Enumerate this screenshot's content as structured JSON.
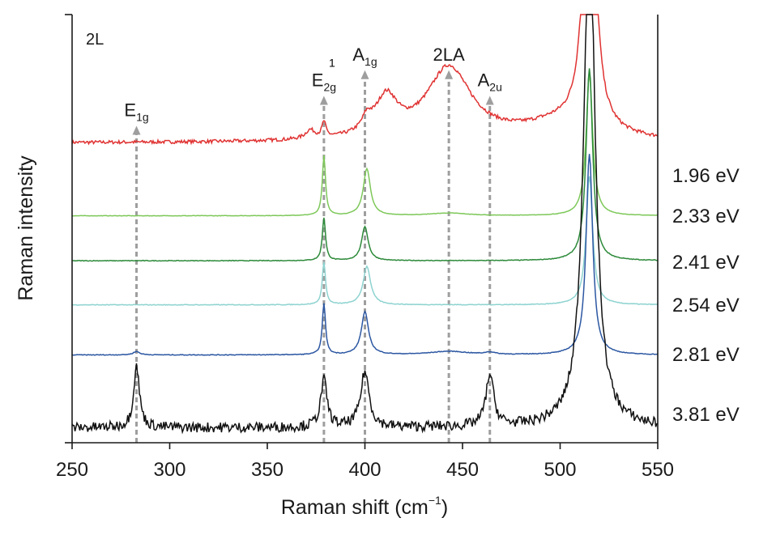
{
  "chart_data": {
    "type": "line",
    "title": "",
    "panel_label": "2L",
    "xlabel": "Raman shift (cm",
    "xlabel_sup": "−1",
    "xlabel_end": ")",
    "ylabel": "Raman intensity",
    "xlim": [
      250,
      550
    ],
    "xticks": [
      "250",
      "300",
      "350",
      "400",
      "450",
      "500",
      "550"
    ],
    "grid": false,
    "peak_markers": [
      {
        "name": "E1g",
        "base": "E",
        "sub": "1g",
        "sup": "",
        "x": 283,
        "top": 0.74
      },
      {
        "name": "E2g1",
        "base": "E",
        "sub": "2g",
        "sup": "1",
        "x": 379,
        "top": 0.81
      },
      {
        "name": "A1g",
        "base": "A",
        "sub": "1g",
        "sup": "",
        "x": 400,
        "top": 0.87
      },
      {
        "name": "2LA",
        "base": "2LA",
        "sub": "",
        "sup": "",
        "x": 443,
        "top": 0.87
      },
      {
        "name": "A2u",
        "base": "A",
        "sub": "2u",
        "sup": "",
        "x": 464,
        "top": 0.81
      }
    ],
    "series": [
      {
        "name": "1.96 eV",
        "color": "#e03232",
        "baseline": 0.7,
        "noise": 0.004,
        "slope": 0.04,
        "peaks": [
          [
            372,
            0.02,
            3
          ],
          [
            379,
            0.035,
            1.2
          ],
          [
            401,
            0.03,
            3
          ],
          [
            411,
            0.09,
            7
          ],
          [
            443,
            0.17,
            14
          ],
          [
            500,
            0.04,
            25
          ],
          [
            515,
            0.9,
            3
          ]
        ]
      },
      {
        "name": "2.33 eV",
        "color": "#7ec85a",
        "baseline": 0.53,
        "noise": 0.0005,
        "slope": 0,
        "peaks": [
          [
            379,
            0.14,
            1.0
          ],
          [
            401,
            0.11,
            2.2
          ],
          [
            443,
            0.006,
            12
          ],
          [
            515,
            0.33,
            2.0
          ]
        ]
      },
      {
        "name": "2.41 eV",
        "color": "#2d8a3a",
        "baseline": 0.425,
        "noise": 0.0008,
        "slope": 0,
        "peaks": [
          [
            379,
            0.1,
            1.0
          ],
          [
            400,
            0.08,
            2.0
          ],
          [
            515,
            0.45,
            2.0
          ]
        ]
      },
      {
        "name": "2.54 eV",
        "color": "#8ed3d0",
        "baseline": 0.322,
        "noise": 0.0008,
        "slope": 0,
        "peaks": [
          [
            379,
            0.1,
            1.0
          ],
          [
            401,
            0.09,
            2.3
          ],
          [
            515,
            0.3,
            2.0
          ]
        ]
      },
      {
        "name": "2.81 eV",
        "color": "#2c57a2",
        "baseline": 0.205,
        "noise": 0.0008,
        "slope": 0,
        "peaks": [
          [
            283,
            0.008,
            2
          ],
          [
            379,
            0.12,
            1.0
          ],
          [
            400,
            0.1,
            2.2
          ],
          [
            443,
            0.008,
            12
          ],
          [
            464,
            0.005,
            3
          ],
          [
            515,
            0.47,
            2.0
          ]
        ]
      },
      {
        "name": "3.81 eV",
        "color": "#111111",
        "baseline": 0.035,
        "noise": 0.012,
        "slope": 0.12,
        "peaks": [
          [
            283,
            0.145,
            1.8
          ],
          [
            379,
            0.11,
            2.0
          ],
          [
            400,
            0.13,
            2.6
          ],
          [
            464,
            0.12,
            2.4
          ],
          [
            515,
            1.2,
            3.5
          ]
        ]
      }
    ]
  }
}
